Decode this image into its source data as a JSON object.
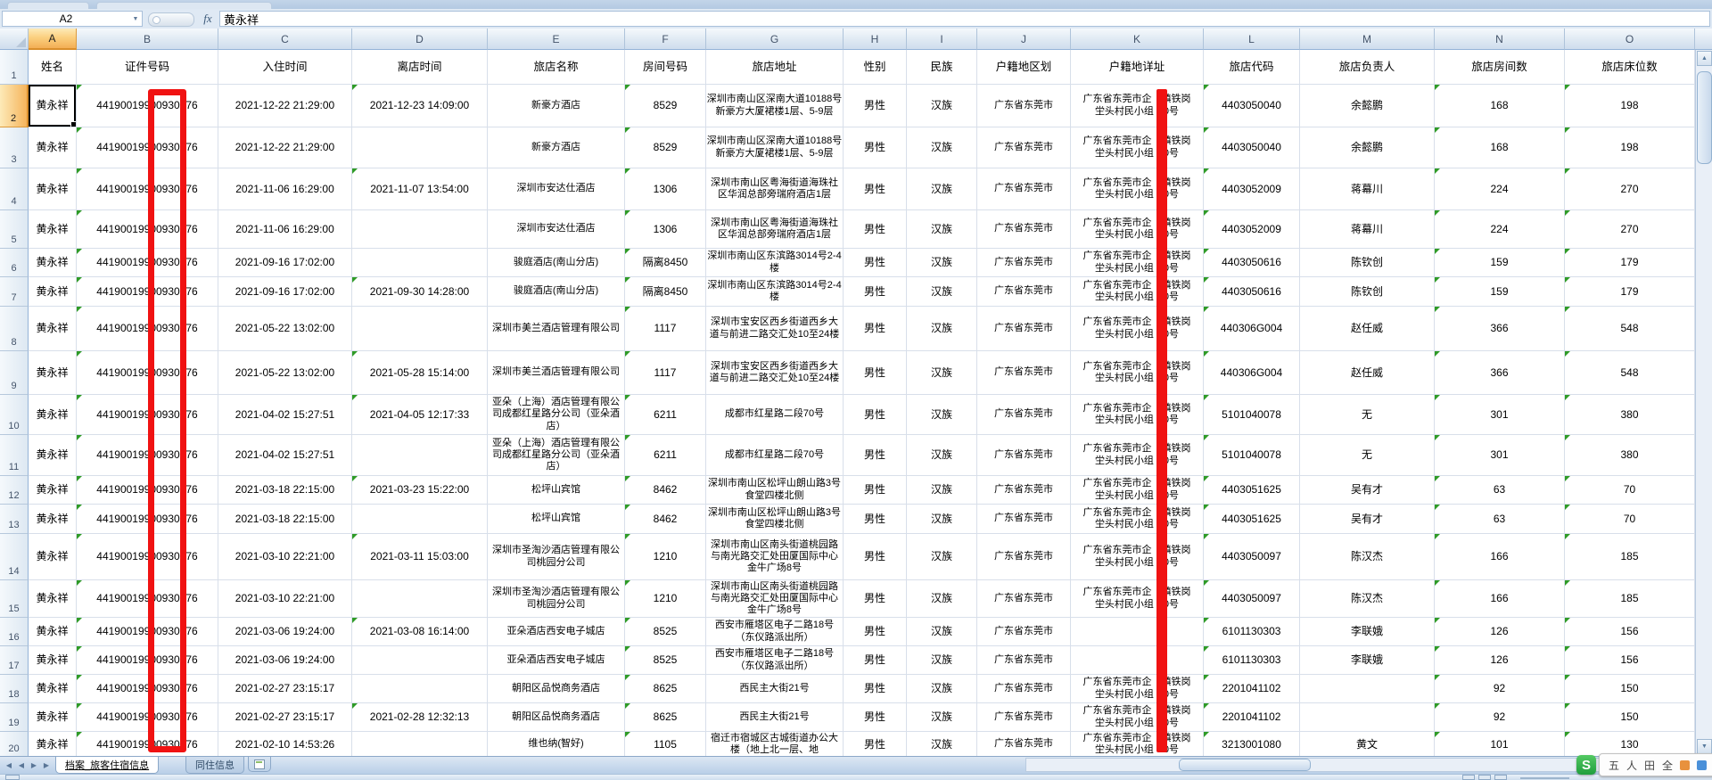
{
  "app": {
    "name_box": "A2",
    "fx_label": "fx",
    "formula_value": "黄永祥"
  },
  "sheet": {
    "columns": [
      {
        "letter": "A",
        "label": "姓名"
      },
      {
        "letter": "B",
        "label": "证件号码"
      },
      {
        "letter": "C",
        "label": "入住时间"
      },
      {
        "letter": "D",
        "label": "离店时间"
      },
      {
        "letter": "E",
        "label": "旅店名称"
      },
      {
        "letter": "F",
        "label": "房间号码"
      },
      {
        "letter": "G",
        "label": "旅店地址"
      },
      {
        "letter": "H",
        "label": "性别"
      },
      {
        "letter": "I",
        "label": "民族"
      },
      {
        "letter": "J",
        "label": "户籍地区划"
      },
      {
        "letter": "K",
        "label": "户籍地详址"
      },
      {
        "letter": "L",
        "label": "旅店代码"
      },
      {
        "letter": "M",
        "label": "旅店负责人"
      },
      {
        "letter": "N",
        "label": "旅店房间数"
      },
      {
        "letter": "O",
        "label": "旅店床位数"
      }
    ],
    "rows": [
      {
        "n": "2",
        "name": "黄永祥",
        "id": "44190019900930376",
        "in": "2021-12-22 21:29:00",
        "out": "2021-12-23 14:09:00",
        "hotel": "新豪方酒店",
        "room": "8529",
        "addr": "深圳市南山区深南大道10188号新豪方大厦裙楼1层、5-9层",
        "sex": "男性",
        "eth": "汉族",
        "region": "广东省东莞市",
        "k1": "广东省东莞市企　镇铁岗",
        "k2": "坣头村民小组　0号",
        "code": "4403050040",
        "mgr": "余懿鹏",
        "rooms": "168",
        "beds": "198"
      },
      {
        "n": "3",
        "name": "黄永祥",
        "id": "44190019900930376",
        "in": "2021-12-22 21:29:00",
        "out": "",
        "hotel": "新豪方酒店",
        "room": "8529",
        "addr": "深圳市南山区深南大道10188号新豪方大厦裙楼1层、5-9层",
        "sex": "男性",
        "eth": "汉族",
        "region": "广东省东莞市",
        "k1": "广东省东莞市企　镇铁岗",
        "k2": "坣头村民小组　0号",
        "code": "4403050040",
        "mgr": "余懿鹏",
        "rooms": "168",
        "beds": "198"
      },
      {
        "n": "4",
        "name": "黄永祥",
        "id": "44190019900930376",
        "in": "2021-11-06 16:29:00",
        "out": "2021-11-07 13:54:00",
        "hotel": "深圳市安达仕酒店",
        "room": "1306",
        "addr": "深圳市南山区粤海街道海珠社区华润总部旁瑞府酒店1层",
        "sex": "男性",
        "eth": "汉族",
        "region": "广东省东莞市",
        "k1": "广东省东莞市企　镇铁岗",
        "k2": "坣头村民小组　0号",
        "code": "4403052009",
        "mgr": "蒋幕川",
        "rooms": "224",
        "beds": "270"
      },
      {
        "n": "5",
        "name": "黄永祥",
        "id": "44190019900930376",
        "in": "2021-11-06 16:29:00",
        "out": "",
        "hotel": "深圳市安达仕酒店",
        "room": "1306",
        "addr": "深圳市南山区粤海街道海珠社区华润总部旁瑞府酒店1层",
        "sex": "男性",
        "eth": "汉族",
        "region": "广东省东莞市",
        "k1": "广东省东莞市企　镇铁岗",
        "k2": "坣头村民小组　0号",
        "code": "4403052009",
        "mgr": "蒋幕川",
        "rooms": "224",
        "beds": "270"
      },
      {
        "n": "6",
        "name": "黄永祥",
        "id": "44190019900930376",
        "in": "2021-09-16 17:02:00",
        "out": "",
        "hotel": "骏庭酒店(南山分店)",
        "room": "隔离8450",
        "addr": "深圳市南山区东滨路3014号2-4楼",
        "sex": "男性",
        "eth": "汉族",
        "region": "广东省东莞市",
        "k1": "广东省东莞市企　镇铁岗",
        "k2": "坣头村民小组　0号",
        "code": "4403050616",
        "mgr": "陈钦创",
        "rooms": "159",
        "beds": "179"
      },
      {
        "n": "7",
        "name": "黄永祥",
        "id": "44190019900930376",
        "in": "2021-09-16 17:02:00",
        "out": "2021-09-30 14:28:00",
        "hotel": "骏庭酒店(南山分店)",
        "room": "隔离8450",
        "addr": "深圳市南山区东滨路3014号2-4楼",
        "sex": "男性",
        "eth": "汉族",
        "region": "广东省东莞市",
        "k1": "广东省东莞市企　镇铁岗",
        "k2": "坣头村民小组　0号",
        "code": "4403050616",
        "mgr": "陈钦创",
        "rooms": "159",
        "beds": "179"
      },
      {
        "n": "8",
        "name": "黄永祥",
        "id": "44190019900930376",
        "in": "2021-05-22 13:02:00",
        "out": "",
        "hotel": "深圳市美兰酒店管理有限公司",
        "room": "1117",
        "addr": "深圳市宝安区西乡街道西乡大道与前进二路交汇处10至24楼",
        "sex": "男性",
        "eth": "汉族",
        "region": "广东省东莞市",
        "k1": "广东省东莞市企　镇铁岗",
        "k2": "坣头村民小组　0号",
        "code": "440306G004",
        "mgr": "赵任威",
        "rooms": "366",
        "beds": "548"
      },
      {
        "n": "9",
        "name": "黄永祥",
        "id": "44190019900930376",
        "in": "2021-05-22 13:02:00",
        "out": "2021-05-28 15:14:00",
        "hotel": "深圳市美兰酒店管理有限公司",
        "room": "1117",
        "addr": "深圳市宝安区西乡街道西乡大道与前进二路交汇处10至24楼",
        "sex": "男性",
        "eth": "汉族",
        "region": "广东省东莞市",
        "k1": "广东省东莞市企　镇铁岗",
        "k2": "坣头村民小组　0号",
        "code": "440306G004",
        "mgr": "赵任威",
        "rooms": "366",
        "beds": "548"
      },
      {
        "n": "10",
        "name": "黄永祥",
        "id": "44190019900930376",
        "in": "2021-04-02 15:27:51",
        "out": "2021-04-05 12:17:33",
        "hotel": "亚朵（上海）酒店管理有限公司成都红星路分公司（亚朵酒店）",
        "room": "6211",
        "addr": "成都市红星路二段70号",
        "sex": "男性",
        "eth": "汉族",
        "region": "广东省东莞市",
        "k1": "广东省东莞市企　镇铁岗",
        "k2": "坣头村民小组　0号",
        "code": "5101040078",
        "mgr": "无",
        "rooms": "301",
        "beds": "380"
      },
      {
        "n": "11",
        "name": "黄永祥",
        "id": "44190019900930376",
        "in": "2021-04-02 15:27:51",
        "out": "",
        "hotel": "亚朵（上海）酒店管理有限公司成都红星路分公司（亚朵酒店）",
        "room": "6211",
        "addr": "成都市红星路二段70号",
        "sex": "男性",
        "eth": "汉族",
        "region": "广东省东莞市",
        "k1": "广东省东莞市企　镇铁岗",
        "k2": "坣头村民小组　0号",
        "code": "5101040078",
        "mgr": "无",
        "rooms": "301",
        "beds": "380"
      },
      {
        "n": "12",
        "name": "黄永祥",
        "id": "44190019900930376",
        "in": "2021-03-18 22:15:00",
        "out": "2021-03-23 15:22:00",
        "hotel": "松坪山宾馆",
        "room": "8462",
        "addr": "深圳市南山区松坪山朗山路3号食堂四楼北侧",
        "sex": "男性",
        "eth": "汉族",
        "region": "广东省东莞市",
        "k1": "广东省东莞市企　镇铁岗",
        "k2": "坣头村民小组　0号",
        "code": "4403051625",
        "mgr": "吴有才",
        "rooms": "63",
        "beds": "70"
      },
      {
        "n": "13",
        "name": "黄永祥",
        "id": "44190019900930376",
        "in": "2021-03-18 22:15:00",
        "out": "",
        "hotel": "松坪山宾馆",
        "room": "8462",
        "addr": "深圳市南山区松坪山朗山路3号食堂四楼北侧",
        "sex": "男性",
        "eth": "汉族",
        "region": "广东省东莞市",
        "k1": "广东省东莞市企　镇铁岗",
        "k2": "坣头村民小组　0号",
        "code": "4403051625",
        "mgr": "吴有才",
        "rooms": "63",
        "beds": "70"
      },
      {
        "n": "14",
        "name": "黄永祥",
        "id": "44190019900930376",
        "in": "2021-03-10 22:21:00",
        "out": "2021-03-11 15:03:00",
        "hotel": "深圳市圣淘沙酒店管理有限公司桃园分公司",
        "room": "1210",
        "addr": "深圳市南山区南头街道桃园路与南光路交汇处田厦国际中心金牛广场8号",
        "sex": "男性",
        "eth": "汉族",
        "region": "广东省东莞市",
        "k1": "广东省东莞市企　镇铁岗",
        "k2": "坣头村民小组　0号",
        "code": "4403050097",
        "mgr": "陈汉杰",
        "rooms": "166",
        "beds": "185"
      },
      {
        "n": "15",
        "name": "黄永祥",
        "id": "44190019900930376",
        "in": "2021-03-10 22:21:00",
        "out": "",
        "hotel": "深圳市圣淘沙酒店管理有限公司桃园分公司",
        "room": "1210",
        "addr": "深圳市南山区南头街道桃园路与南光路交汇处田厦国际中心金牛广场8号",
        "sex": "男性",
        "eth": "汉族",
        "region": "广东省东莞市",
        "k1": "广东省东莞市企　镇铁岗",
        "k2": "坣头村民小组　0号",
        "code": "4403050097",
        "mgr": "陈汉杰",
        "rooms": "166",
        "beds": "185"
      },
      {
        "n": "16",
        "name": "黄永祥",
        "id": "44190019900930376",
        "in": "2021-03-06 19:24:00",
        "out": "2021-03-08 16:14:00",
        "hotel": "亚朵酒店西安电子城店",
        "room": "8525",
        "addr": "西安市雁塔区电子二路18号（东仪路派出所）",
        "sex": "男性",
        "eth": "汉族",
        "region": "广东省东莞市",
        "k1": "",
        "k2": "",
        "code": "6101130303",
        "mgr": "李联娥",
        "rooms": "126",
        "beds": "156"
      },
      {
        "n": "17",
        "name": "黄永祥",
        "id": "44190019900930376",
        "in": "2021-03-06 19:24:00",
        "out": "",
        "hotel": "亚朵酒店西安电子城店",
        "room": "8525",
        "addr": "西安市雁塔区电子二路18号（东仪路派出所）",
        "sex": "男性",
        "eth": "汉族",
        "region": "广东省东莞市",
        "k1": "",
        "k2": "",
        "code": "6101130303",
        "mgr": "李联娥",
        "rooms": "126",
        "beds": "156"
      },
      {
        "n": "18",
        "name": "黄永祥",
        "id": "44190019900930376",
        "in": "2021-02-27 23:15:17",
        "out": "",
        "hotel": "朝阳区品悦商务酒店",
        "room": "8625",
        "addr": "西民主大街21号",
        "sex": "男性",
        "eth": "汉族",
        "region": "广东省东莞市",
        "k1": "广东省东莞市企　镇铁岗",
        "k2": "坣头村民小组　0号",
        "code": "2201041102",
        "mgr": "",
        "rooms": "92",
        "beds": "150"
      },
      {
        "n": "19",
        "name": "黄永祥",
        "id": "44190019900930376",
        "in": "2021-02-27 23:15:17",
        "out": "2021-02-28 12:32:13",
        "hotel": "朝阳区品悦商务酒店",
        "room": "8625",
        "addr": "西民主大街21号",
        "sex": "男性",
        "eth": "汉族",
        "region": "广东省东莞市",
        "k1": "广东省东莞市企　镇铁岗",
        "k2": "坣头村民小组　0号",
        "code": "2201041102",
        "mgr": "",
        "rooms": "92",
        "beds": "150"
      },
      {
        "n": "20",
        "name": "黄永祥",
        "id": "44190019900930376",
        "in": "2021-02-10 14:53:26",
        "out": "",
        "hotel": "维也纳(智好)",
        "room": "1105",
        "addr": "宿迁市宿城区古城街道办公大楼（地上北一层、地",
        "sex": "男性",
        "eth": "汉族",
        "region": "广东省东莞市",
        "k1": "广东省东莞市企　镇铁岗",
        "k2": "坣头村民小组　0号",
        "code": "3213001080",
        "mgr": "黄文",
        "rooms": "101",
        "beds": "130"
      }
    ]
  },
  "tabs": {
    "items": [
      {
        "label": "档案_旅客住宿信息",
        "active": true
      },
      {
        "label": "同住信息",
        "active": false
      }
    ]
  },
  "annotations": {
    "color": "#f01212",
    "marks": [
      "id-number-column-redaction-box",
      "household-address-column-redaction-bar"
    ]
  },
  "ime": {
    "logo": "S",
    "items": [
      "五",
      "人",
      "田",
      "全"
    ]
  }
}
